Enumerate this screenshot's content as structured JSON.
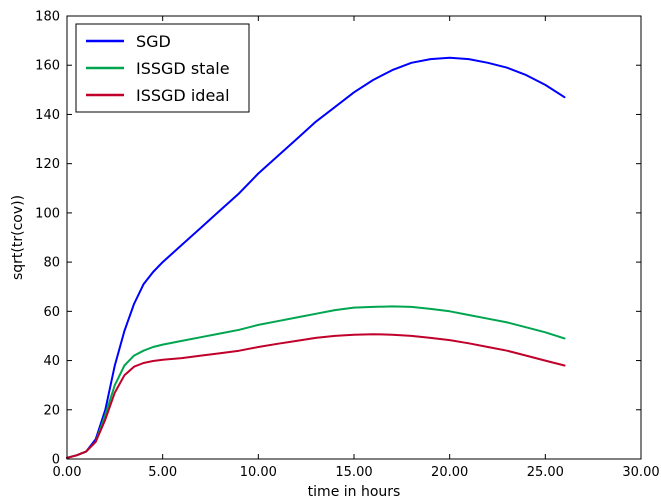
{
  "chart_data": {
    "type": "line",
    "title": "",
    "xlabel": "time in hours",
    "ylabel": "sqrt(tr(cov))",
    "xlim": [
      0,
      30
    ],
    "ylim": [
      0,
      180
    ],
    "x_ticks": [
      "0.00",
      "5.00",
      "10.00",
      "15.00",
      "20.00",
      "25.00",
      "30.00"
    ],
    "y_ticks": [
      "0",
      "20",
      "40",
      "60",
      "80",
      "100",
      "120",
      "140",
      "160",
      "180"
    ],
    "grid": false,
    "legend_position": "top-left",
    "series": [
      {
        "name": "SGD",
        "color": "#0000ff",
        "x": [
          0,
          0.5,
          1.0,
          1.5,
          2.0,
          2.5,
          3.0,
          3.5,
          4.0,
          4.5,
          5.0,
          6.0,
          7.0,
          8.0,
          9.0,
          10.0,
          11.0,
          12.0,
          13.0,
          14.0,
          15.0,
          16.0,
          17.0,
          18.0,
          19.0,
          20.0,
          21.0,
          22.0,
          23.0,
          24.0,
          25.0,
          26.0
        ],
        "y": [
          0.5,
          1.5,
          3,
          8,
          20,
          38,
          52,
          63,
          71,
          76,
          80,
          87,
          94,
          101,
          108,
          116,
          123,
          130,
          137,
          143,
          149,
          154,
          158,
          161,
          162.5,
          163,
          162.5,
          161,
          159,
          156,
          152,
          147
        ]
      },
      {
        "name": "ISSGD stale",
        "color": "#00a550",
        "x": [
          0,
          0.5,
          1.0,
          1.5,
          2.0,
          2.5,
          3.0,
          3.5,
          4.0,
          4.5,
          5.0,
          6.0,
          7.0,
          8.0,
          9.0,
          10.0,
          11.0,
          12.0,
          13.0,
          14.0,
          15.0,
          16.0,
          17.0,
          18.0,
          19.0,
          20.0,
          21.0,
          22.0,
          23.0,
          24.0,
          25.0,
          26.0
        ],
        "y": [
          0.5,
          1.5,
          3,
          7,
          18,
          30,
          38,
          42,
          44,
          45.5,
          46.5,
          48,
          49.5,
          51,
          52.5,
          54.5,
          56,
          57.5,
          59,
          60.5,
          61.5,
          61.8,
          62,
          61.8,
          61,
          60,
          58.5,
          57,
          55.5,
          53.5,
          51.5,
          49
        ]
      },
      {
        "name": "ISSGD ideal",
        "color": "#c0002a",
        "x": [
          0,
          0.5,
          1.0,
          1.5,
          2.0,
          2.5,
          3.0,
          3.5,
          4.0,
          4.5,
          5.0,
          6.0,
          7.0,
          8.0,
          9.0,
          10.0,
          11.0,
          12.0,
          13.0,
          14.0,
          15.0,
          16.0,
          17.0,
          18.0,
          19.0,
          20.0,
          21.0,
          22.0,
          23.0,
          24.0,
          25.0,
          26.0
        ],
        "y": [
          0.5,
          1.5,
          3,
          7,
          16,
          27,
          34,
          37.5,
          39,
          39.8,
          40.3,
          41,
          42,
          43,
          44,
          45.5,
          46.8,
          48,
          49.2,
          50,
          50.5,
          50.7,
          50.5,
          50,
          49.2,
          48.3,
          47,
          45.5,
          44,
          42,
          40,
          38
        ]
      }
    ]
  }
}
